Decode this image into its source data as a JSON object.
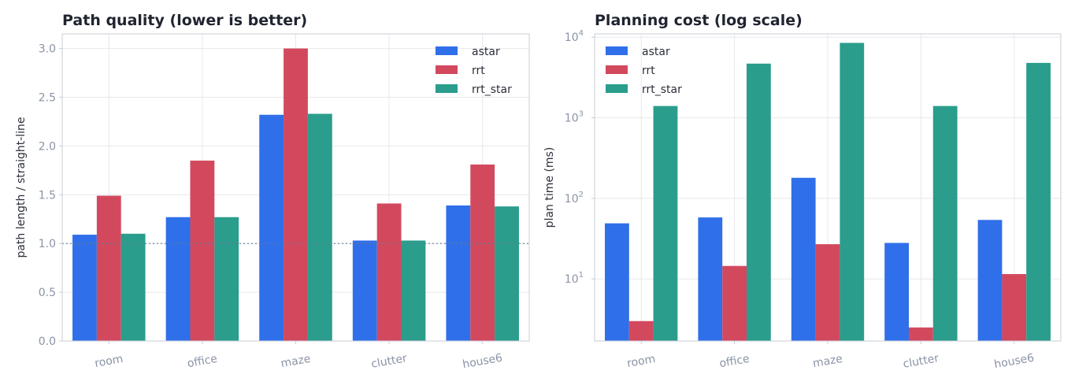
{
  "chart_data": [
    {
      "type": "bar",
      "title": "Path quality (lower is better)",
      "xlabel": "",
      "ylabel": "path length / straight-line",
      "categories": [
        "room",
        "office",
        "maze",
        "clutter",
        "house6"
      ],
      "series": [
        {
          "name": "astar",
          "values": [
            1.09,
            1.27,
            2.32,
            1.03,
            1.39
          ]
        },
        {
          "name": "rrt",
          "values": [
            1.49,
            1.85,
            3.0,
            1.41,
            1.81
          ]
        },
        {
          "name": "rrt_star",
          "values": [
            1.1,
            1.27,
            2.33,
            1.03,
            1.38
          ]
        }
      ],
      "ylim": [
        0,
        3.15
      ],
      "yticks": [
        0.0,
        0.5,
        1.0,
        1.5,
        2.0,
        2.5,
        3.0
      ],
      "ytick_labels": [
        "0.0",
        "0.5",
        "1.0",
        "1.5",
        "2.0",
        "2.5",
        "3.0"
      ],
      "reference_line": 1.0,
      "grid": true,
      "legend": "top-right",
      "colors": {
        "astar": "#2f6fe9",
        "rrt": "#d2495e",
        "rrt_star": "#2a9d8c"
      }
    },
    {
      "type": "bar",
      "title": "Planning cost (log scale)",
      "xlabel": "",
      "ylabel": "plan time (ms)",
      "yscale": "log",
      "categories": [
        "room",
        "office",
        "maze",
        "clutter",
        "house6"
      ],
      "series": [
        {
          "name": "astar",
          "values": [
            49,
            58,
            180,
            28,
            54
          ]
        },
        {
          "name": "rrt",
          "values": [
            3.0,
            14.5,
            27,
            2.5,
            11.5
          ]
        },
        {
          "name": "rrt_star",
          "values": [
            1400,
            4700,
            8500,
            1400,
            4800
          ]
        }
      ],
      "ylim": [
        1.7,
        11000
      ],
      "yticks": [
        10,
        100,
        1000,
        10000
      ],
      "ytick_base": "10",
      "ytick_exponents": [
        "1",
        "2",
        "3",
        "4"
      ],
      "grid": true,
      "legend": "top-left",
      "colors": {
        "astar": "#2f6fe9",
        "rrt": "#d2495e",
        "rrt_star": "#2a9d8c"
      }
    }
  ]
}
